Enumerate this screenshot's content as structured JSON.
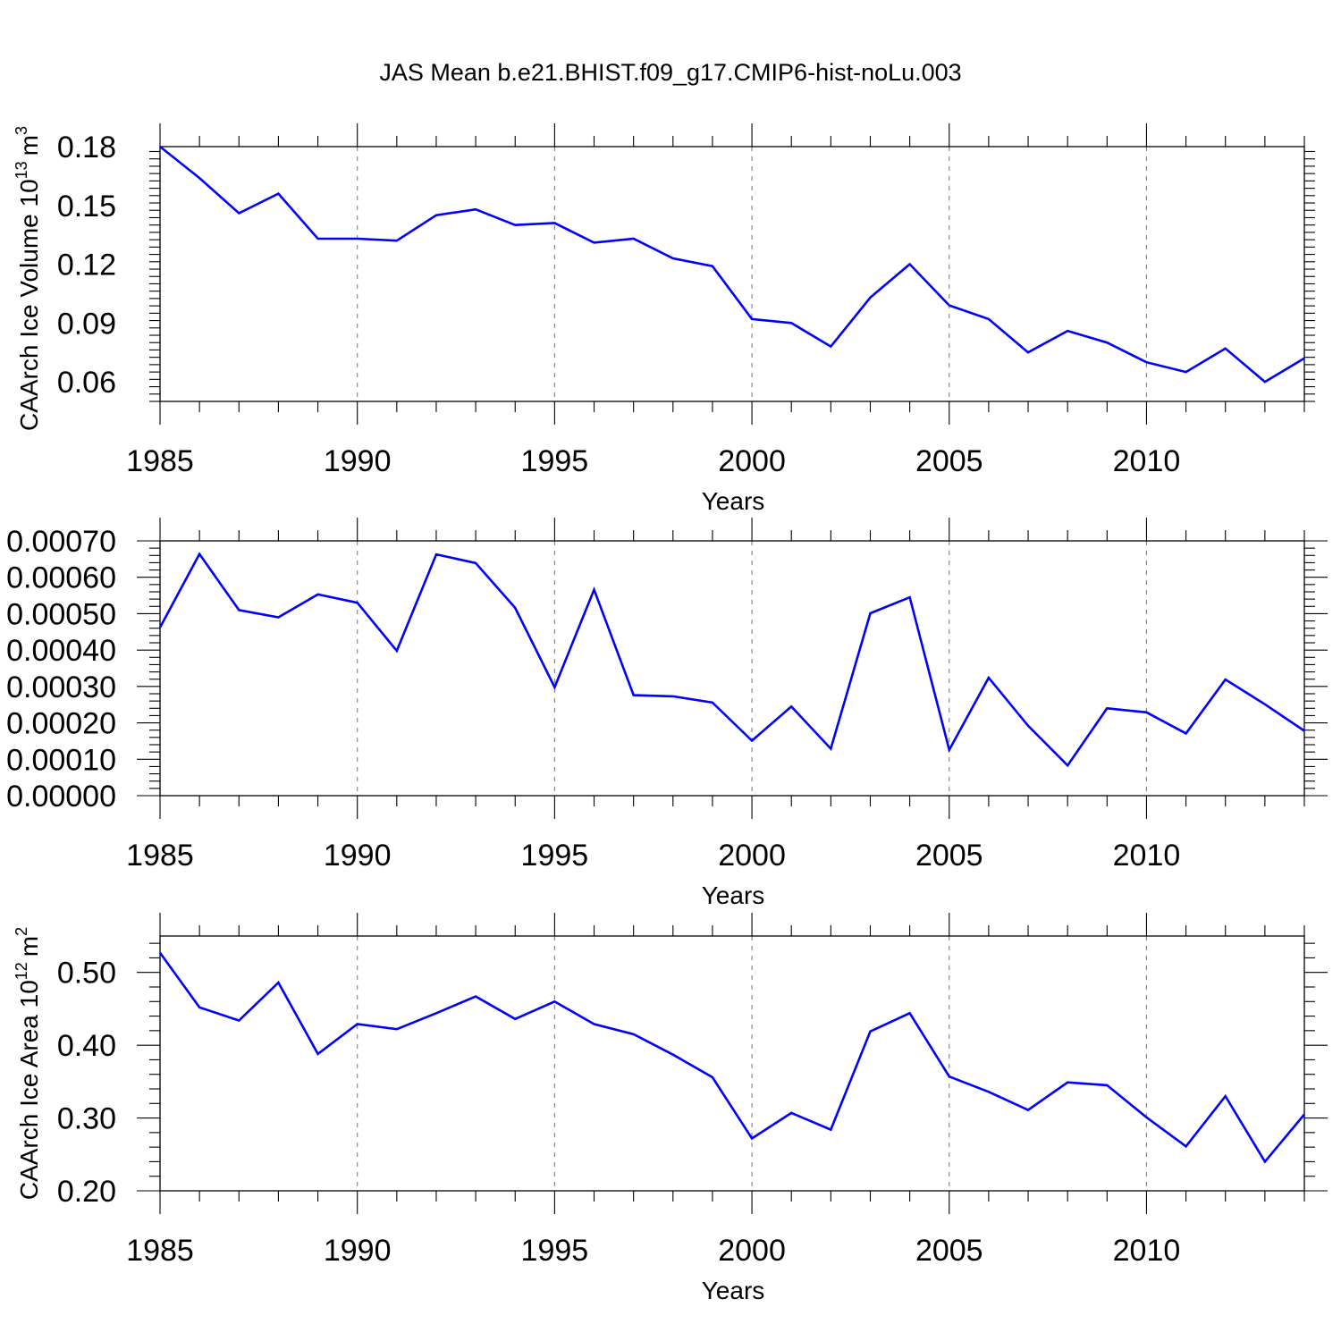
{
  "title": "JAS Mean b.e21.BHIST.f09_g17.CMIP6-hist-noLu.003",
  "colors": {
    "line": "#0000ff",
    "axis": "#000000",
    "grid": "#808080"
  },
  "chart_data": [
    {
      "type": "line",
      "xlabel": "Years",
      "ylabel": "CAArch Ice Volume 10",
      "ylabel_exp": "13",
      "ylabel_unit": "m",
      "ylabel_unit_exp": "3",
      "xlim": [
        1985,
        2014
      ],
      "ylim": [
        0.05,
        0.18
      ],
      "xticks": [
        1985,
        1990,
        1995,
        2000,
        2005,
        2010
      ],
      "yticks": [
        0.06,
        0.09,
        0.12,
        0.15,
        0.18
      ],
      "ytick_labels": [
        "0.06",
        "0.09",
        "0.12",
        "0.15",
        "0.18"
      ],
      "grid": "vertical dashed at major x ticks",
      "x": [
        1985,
        1986,
        1987,
        1988,
        1989,
        1990,
        1991,
        1992,
        1993,
        1994,
        1995,
        1996,
        1997,
        1998,
        1999,
        2000,
        2001,
        2002,
        2003,
        2004,
        2005,
        2006,
        2007,
        2008,
        2009,
        2010,
        2011,
        2012,
        2013,
        2014
      ],
      "y": [
        0.18,
        0.164,
        0.146,
        0.156,
        0.133,
        0.133,
        0.132,
        0.145,
        0.148,
        0.14,
        0.141,
        0.131,
        0.133,
        0.123,
        0.119,
        0.092,
        0.09,
        0.078,
        0.103,
        0.12,
        0.099,
        0.092,
        0.075,
        0.086,
        0.08,
        0.07,
        0.065,
        0.077,
        0.06,
        0.072
      ]
    },
    {
      "type": "line",
      "xlabel": "Years",
      "ylabel": "",
      "xlim": [
        1985,
        2014
      ],
      "ylim": [
        0.0,
        0.0007
      ],
      "xticks": [
        1985,
        1990,
        1995,
        2000,
        2005,
        2010
      ],
      "yticks": [
        0.0,
        0.0001,
        0.0002,
        0.0003,
        0.0004,
        0.0005,
        0.0006,
        0.0007
      ],
      "ytick_labels": [
        "0.00000",
        "0.00010",
        "0.00020",
        "0.00030",
        "0.00040",
        "0.00050",
        "0.00060",
        "0.00070"
      ],
      "grid": "vertical dashed at major x ticks",
      "x": [
        1985,
        1986,
        1987,
        1988,
        1989,
        1990,
        1991,
        1992,
        1993,
        1994,
        1995,
        1996,
        1997,
        1998,
        1999,
        2000,
        2001,
        2002,
        2003,
        2004,
        2005,
        2006,
        2007,
        2008,
        2009,
        2010,
        2011,
        2012,
        2013,
        2014
      ],
      "y": [
        0.000462,
        0.000664,
        0.00051,
        0.00049,
        0.000553,
        0.00053,
        0.000398,
        0.000663,
        0.000639,
        0.000516,
        0.000298,
        0.000566,
        0.000276,
        0.000273,
        0.000256,
        0.000151,
        0.000245,
        0.000129,
        0.000501,
        0.000545,
        0.000126,
        0.000324,
        0.000192,
        8.3e-05,
        0.00024,
        0.000229,
        0.000171,
        0.000319,
        0.000251,
        0.000178
      ]
    },
    {
      "type": "line",
      "xlabel": "Years",
      "ylabel": "CAArch Ice Area 10",
      "ylabel_exp": "12",
      "ylabel_unit": "m",
      "ylabel_unit_exp": "2",
      "xlim": [
        1985,
        2014
      ],
      "ylim": [
        0.2,
        0.55
      ],
      "xticks": [
        1985,
        1990,
        1995,
        2000,
        2005,
        2010
      ],
      "yticks": [
        0.2,
        0.3,
        0.4,
        0.5
      ],
      "ytick_labels": [
        "0.20",
        "0.30",
        "0.40",
        "0.50"
      ],
      "grid": "vertical dashed at major x ticks",
      "x": [
        1985,
        1986,
        1987,
        1988,
        1989,
        1990,
        1991,
        1992,
        1993,
        1994,
        1995,
        1996,
        1997,
        1998,
        1999,
        2000,
        2001,
        2002,
        2003,
        2004,
        2005,
        2006,
        2007,
        2008,
        2009,
        2010,
        2011,
        2012,
        2013,
        2014
      ],
      "y": [
        0.527,
        0.452,
        0.434,
        0.486,
        0.388,
        0.429,
        0.422,
        0.444,
        0.467,
        0.436,
        0.46,
        0.429,
        0.415,
        0.387,
        0.356,
        0.272,
        0.307,
        0.284,
        0.419,
        0.444,
        0.357,
        0.336,
        0.311,
        0.349,
        0.345,
        0.301,
        0.261,
        0.33,
        0.24,
        0.305
      ]
    }
  ]
}
